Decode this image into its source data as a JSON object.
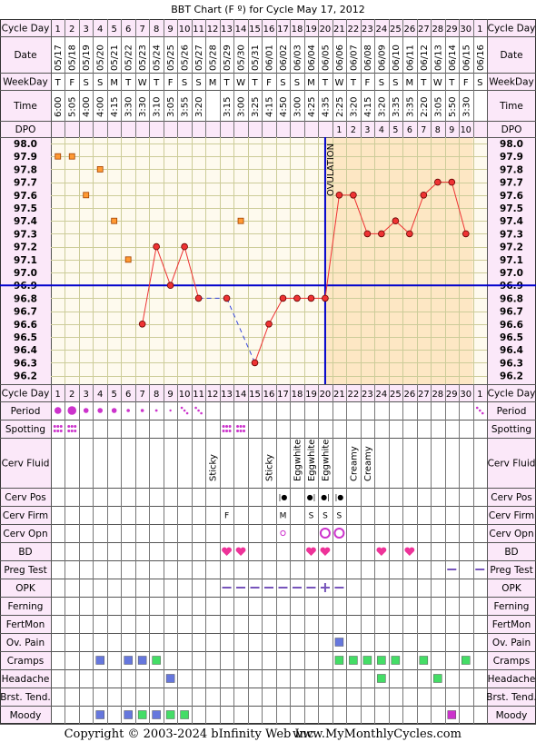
{
  "title": "BBT Chart (F º) for Cycle May 17, 2012",
  "row_labels": {
    "cycle_day": "Cycle Day",
    "date": "Date",
    "weekday": "WeekDay",
    "time": "Time",
    "dpo": "DPO",
    "period": "Period",
    "spotting": "Spotting",
    "cerv_fluid": "Cerv Fluid",
    "cerv_pos": "Cerv Pos",
    "cerv_firm": "Cerv Firm",
    "cerv_opn": "Cerv Opn",
    "bd": "BD",
    "preg_test": "Preg Test",
    "opk": "OPK",
    "ferning": "Ferning",
    "fertmon": "FertMon",
    "ov_pain": "Ov. Pain",
    "cramps": "Cramps",
    "headache": "Headache",
    "brst_tend": "Brst. Tend.",
    "moody": "Moody"
  },
  "cycle_days": [
    "1",
    "2",
    "3",
    "4",
    "5",
    "6",
    "7",
    "8",
    "9",
    "10",
    "11",
    "12",
    "13",
    "14",
    "15",
    "16",
    "17",
    "18",
    "19",
    "20",
    "21",
    "22",
    "23",
    "24",
    "25",
    "26",
    "27",
    "28",
    "29",
    "30",
    "1"
  ],
  "dates": [
    "05/17",
    "05/18",
    "05/19",
    "05/20",
    "05/21",
    "05/22",
    "05/23",
    "05/24",
    "05/25",
    "05/26",
    "05/27",
    "05/28",
    "05/29",
    "05/30",
    "05/31",
    "06/01",
    "06/02",
    "06/03",
    "06/04",
    "06/05",
    "06/06",
    "06/07",
    "06/08",
    "06/09",
    "06/10",
    "06/11",
    "06/12",
    "06/13",
    "06/14",
    "06/15",
    "06/16"
  ],
  "weekdays": [
    "T",
    "F",
    "S",
    "S",
    "M",
    "T",
    "W",
    "T",
    "F",
    "S",
    "S",
    "M",
    "T",
    "W",
    "T",
    "F",
    "S",
    "S",
    "M",
    "T",
    "W",
    "T",
    "F",
    "S",
    "S",
    "M",
    "T",
    "W",
    "T",
    "F",
    "S"
  ],
  "times": [
    "6:00",
    "5:05",
    "4:00",
    "4:00",
    "4:15",
    "3:30",
    "3:30",
    "3:10",
    "3:05",
    "3:55",
    "3:20",
    "",
    "3:15",
    "3:00",
    "3:25",
    "4:15",
    "4:50",
    "3:00",
    "4:25",
    "4:35",
    "2:25",
    "3:20",
    "4:15",
    "3:20",
    "3:35",
    "3:35",
    "2:20",
    "3:05",
    "5:50",
    "3:30",
    ""
  ],
  "dpo": [
    "",
    "",
    "",
    "",
    "",
    "",
    "",
    "",
    "",
    "",
    "",
    "",
    "",
    "",
    "",
    "",
    "",
    "",
    "",
    "",
    "1",
    "2",
    "3",
    "4",
    "5",
    "6",
    "7",
    "8",
    "9",
    "10",
    ""
  ],
  "ovulation_label": "OVULATION",
  "copyright": "Copyright © 2003-2024 bInfinity Web Inc.",
  "site": "www.MyMonthlyCycles.com",
  "colors": {
    "background": "#ffffff",
    "title_bg": "#f8e6f6",
    "pink_cell": "#fbe8f9",
    "plot_bg": "#fefaee",
    "post_ov_bg": "#fde7c4",
    "grid": "#cccc99",
    "temp_line": "#ee3333",
    "temp_point": "#ee3333",
    "open_square": "#ff9933",
    "coverline": "#0000cc",
    "opk_mark": "#7755bb",
    "magenta": "#cc33cc",
    "blue_sq": "#6677dd",
    "green_sq": "#44dd66"
  },
  "chart_data": {
    "type": "line",
    "title": "BBT Chart (F º) for Cycle May 17, 2012",
    "ylim": [
      96.2,
      98.0
    ],
    "yticks": [
      "98.0",
      "97.9",
      "97.8",
      "97.7",
      "97.6",
      "97.5",
      "97.4",
      "97.3",
      "97.2",
      "97.1",
      "97.0",
      "96.9",
      "96.8",
      "96.7",
      "96.6",
      "96.5",
      "96.4",
      "96.3",
      "96.2"
    ],
    "x": [
      "1",
      "2",
      "3",
      "4",
      "5",
      "6",
      "7",
      "8",
      "9",
      "10",
      "11",
      "12",
      "13",
      "14",
      "15",
      "16",
      "17",
      "18",
      "19",
      "20",
      "21",
      "22",
      "23",
      "24",
      "25",
      "26",
      "27",
      "28",
      "29",
      "30",
      "1"
    ],
    "temperatures": [
      97.9,
      97.9,
      97.6,
      97.8,
      97.4,
      97.1,
      96.6,
      97.2,
      96.9,
      97.2,
      96.8,
      null,
      96.8,
      97.4,
      96.3,
      96.6,
      96.8,
      96.8,
      96.8,
      96.8,
      97.6,
      97.6,
      97.3,
      97.3,
      97.4,
      97.3,
      97.6,
      97.7,
      97.7,
      97.3,
      null
    ],
    "discarded": [
      true,
      true,
      true,
      true,
      true,
      true,
      false,
      false,
      false,
      false,
      false,
      false,
      false,
      true,
      false,
      false,
      false,
      false,
      false,
      false,
      false,
      false,
      false,
      false,
      false,
      false,
      false,
      false,
      false,
      false,
      false
    ],
    "coverline": 96.9,
    "ovulation_day_index": 19,
    "grid": true
  },
  "markers": {
    "period": [
      3,
      4,
      2,
      2,
      2,
      1,
      1,
      0.6,
      0.4,
      "dots",
      "dots",
      0,
      0,
      0,
      0,
      0,
      0,
      0,
      0,
      0,
      0,
      0,
      0,
      0,
      0,
      0,
      0,
      0,
      0,
      0,
      "dots"
    ],
    "spotting_days": [
      0,
      1,
      12,
      13
    ],
    "cerv_fluid": [
      "",
      "",
      "",
      "",
      "",
      "",
      "",
      "",
      "",
      "",
      "",
      "Sticky",
      "",
      "",
      "",
      "Sticky",
      "",
      "Eggwhite",
      "Eggwhite",
      "Eggwhite",
      "",
      "Creamy",
      "Creamy",
      "",
      "",
      "",
      "",
      "",
      "",
      "",
      ""
    ],
    "cerv_pos": {
      "16": "|●",
      "18": "●|",
      "19": "●|",
      "20": "|●"
    },
    "cerv_firm": {
      "12": "F",
      "16": "M",
      "18": "S",
      "19": "S",
      "20": "S"
    },
    "cerv_opn": {
      "16": "small",
      "19": "big",
      "20": "big"
    },
    "bd_days": [
      12,
      13,
      18,
      19,
      23,
      25
    ],
    "preg_test_days": [
      28,
      30
    ],
    "opk_neg_days": [
      12,
      13,
      14,
      15,
      16,
      17,
      18,
      20
    ],
    "opk_pos_days": [
      19
    ],
    "ov_pain_days": [
      20
    ],
    "cramps": {
      "3": "blue",
      "5": "blue",
      "6": "blue",
      "7": "green",
      "20": "green",
      "21": "green",
      "22": "green",
      "23": "green",
      "24": "green",
      "26": "green",
      "29": "green"
    },
    "headache": {
      "8": "blue",
      "23": "green",
      "27": "green"
    },
    "moody": {
      "3": "blue",
      "5": "blue",
      "6": "green",
      "7": "blue",
      "8": "green",
      "9": "green",
      "28": "magenta"
    }
  }
}
